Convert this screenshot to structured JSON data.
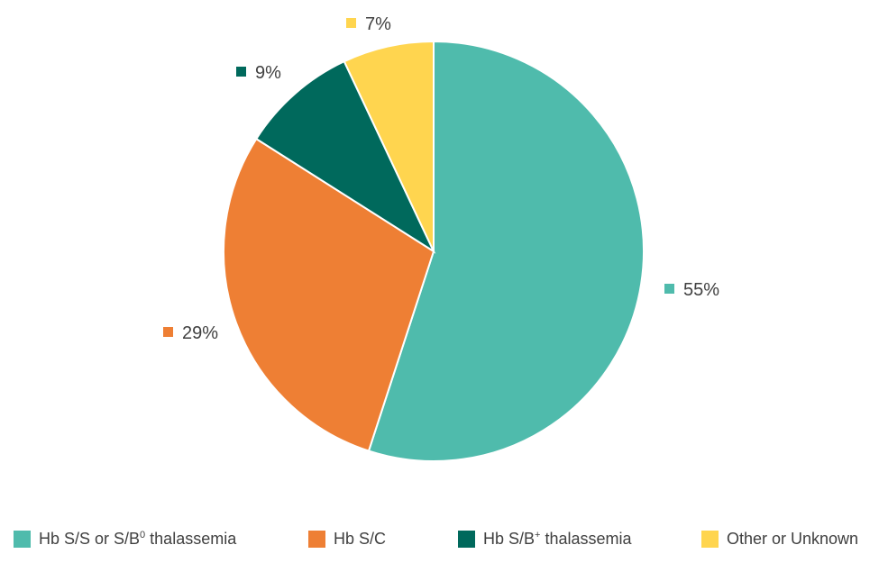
{
  "chart_data": {
    "type": "pie",
    "title": "",
    "categories": [
      "Hb S/S or S/B⁰ thalassemia",
      "Hb S/C",
      "Hb S/B⁺ thalassemia",
      "Other or Unknown"
    ],
    "values": [
      55,
      29,
      9,
      7
    ],
    "labels": [
      "55%",
      "29%",
      "9%",
      "7%"
    ],
    "colors": [
      "#4fbbac",
      "#ee7f34",
      "#00695c",
      "#ffd54f"
    ],
    "legend_position": "bottom",
    "start": "top",
    "direction": "clockwise"
  },
  "legend": {
    "items": [
      {
        "base": "Hb S/S or S/B",
        "sup": "0",
        "rest": " thalassemia",
        "color": "#4fbbac"
      },
      {
        "base": "Hb S/C",
        "sup": "",
        "rest": "",
        "color": "#ee7f34"
      },
      {
        "base": "Hb S/B",
        "sup": "+",
        "rest": " thalassemia",
        "color": "#00695c"
      },
      {
        "base": "Other or Unknown",
        "sup": "",
        "rest": "",
        "color": "#ffd54f"
      }
    ]
  }
}
